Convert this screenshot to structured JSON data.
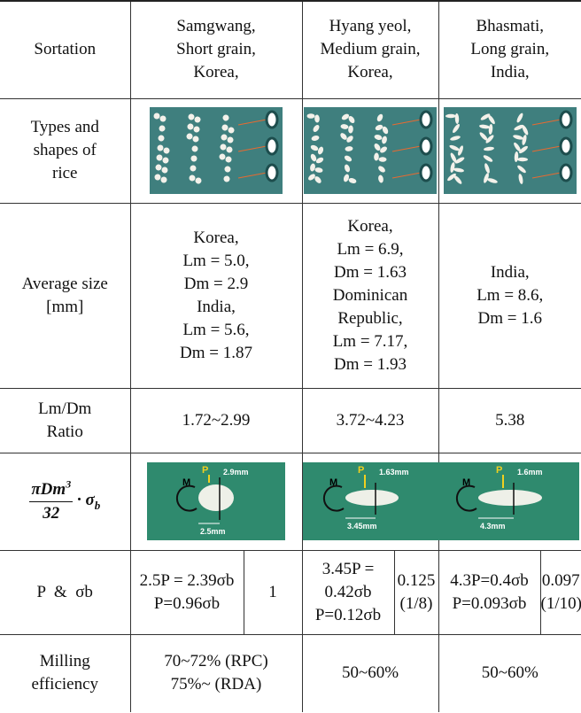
{
  "table": {
    "header": {
      "label": "Sortation",
      "cols": [
        [
          "Samgwang,",
          "Short grain,",
          "Korea,"
        ],
        [
          "Hyang yeol,",
          "Medium grain,",
          "Korea,"
        ],
        [
          "Bhasmati,",
          "Long grain,",
          "India,"
        ]
      ]
    },
    "types": {
      "label": [
        "Types and",
        "shapes of",
        "rice"
      ]
    },
    "average": {
      "label": [
        "Average size",
        "[mm]"
      ],
      "cols": [
        [
          "Korea,",
          "Lm = 5.0,",
          "Dm = 2.9",
          "India,",
          "Lm = 5.6,",
          "Dm = 1.87"
        ],
        [
          "Korea,",
          "Lm = 6.9,",
          "Dm = 1.63",
          "Dominican",
          "Republic,",
          "Lm = 7.17,",
          "Dm = 1.93"
        ],
        [
          "India,",
          "Lm = 8.6,",
          "Dm = 1.6"
        ]
      ]
    },
    "ratio": {
      "label": [
        "Lm/Dm",
        "Ratio"
      ],
      "cols": [
        "1.72~2.99",
        "3.72~4.23",
        "5.38"
      ]
    },
    "formula": {
      "numerator": "πDm",
      "exponent": "3",
      "denominator": "32",
      "operator": "·",
      "symbol": "σ",
      "subscript": "b",
      "images": [
        {
          "m": "M",
          "p": "P",
          "d": "2.9mm",
          "l": "2.5mm"
        },
        {
          "m": "M",
          "p": "P",
          "d": "1.63mm",
          "l": "3.45mm"
        },
        {
          "m": "M",
          "p": "P",
          "d": "1.6mm",
          "l": "4.3mm"
        }
      ]
    },
    "load": {
      "label": "P  &  σb",
      "cols": [
        {
          "eq": [
            "2.5P = 2.39σb",
            "P=0.96σb"
          ],
          "ratio": [
            "1"
          ]
        },
        {
          "eq": [
            "3.45P =",
            "0.42σb",
            "P=0.12σb"
          ],
          "ratio": [
            "0.125",
            "(1/8)"
          ]
        },
        {
          "eq": [
            "4.3P=0.4σb",
            "P=0.093σb"
          ],
          "ratio": [
            "0.097",
            "(1/10)"
          ]
        }
      ]
    },
    "milling": {
      "label": [
        "Milling",
        "efficiency"
      ],
      "cols": [
        [
          "70~72% (RPC)",
          "75%~ (RDA)"
        ],
        [
          "50~60%"
        ],
        [
          "50~60%"
        ]
      ]
    }
  }
}
